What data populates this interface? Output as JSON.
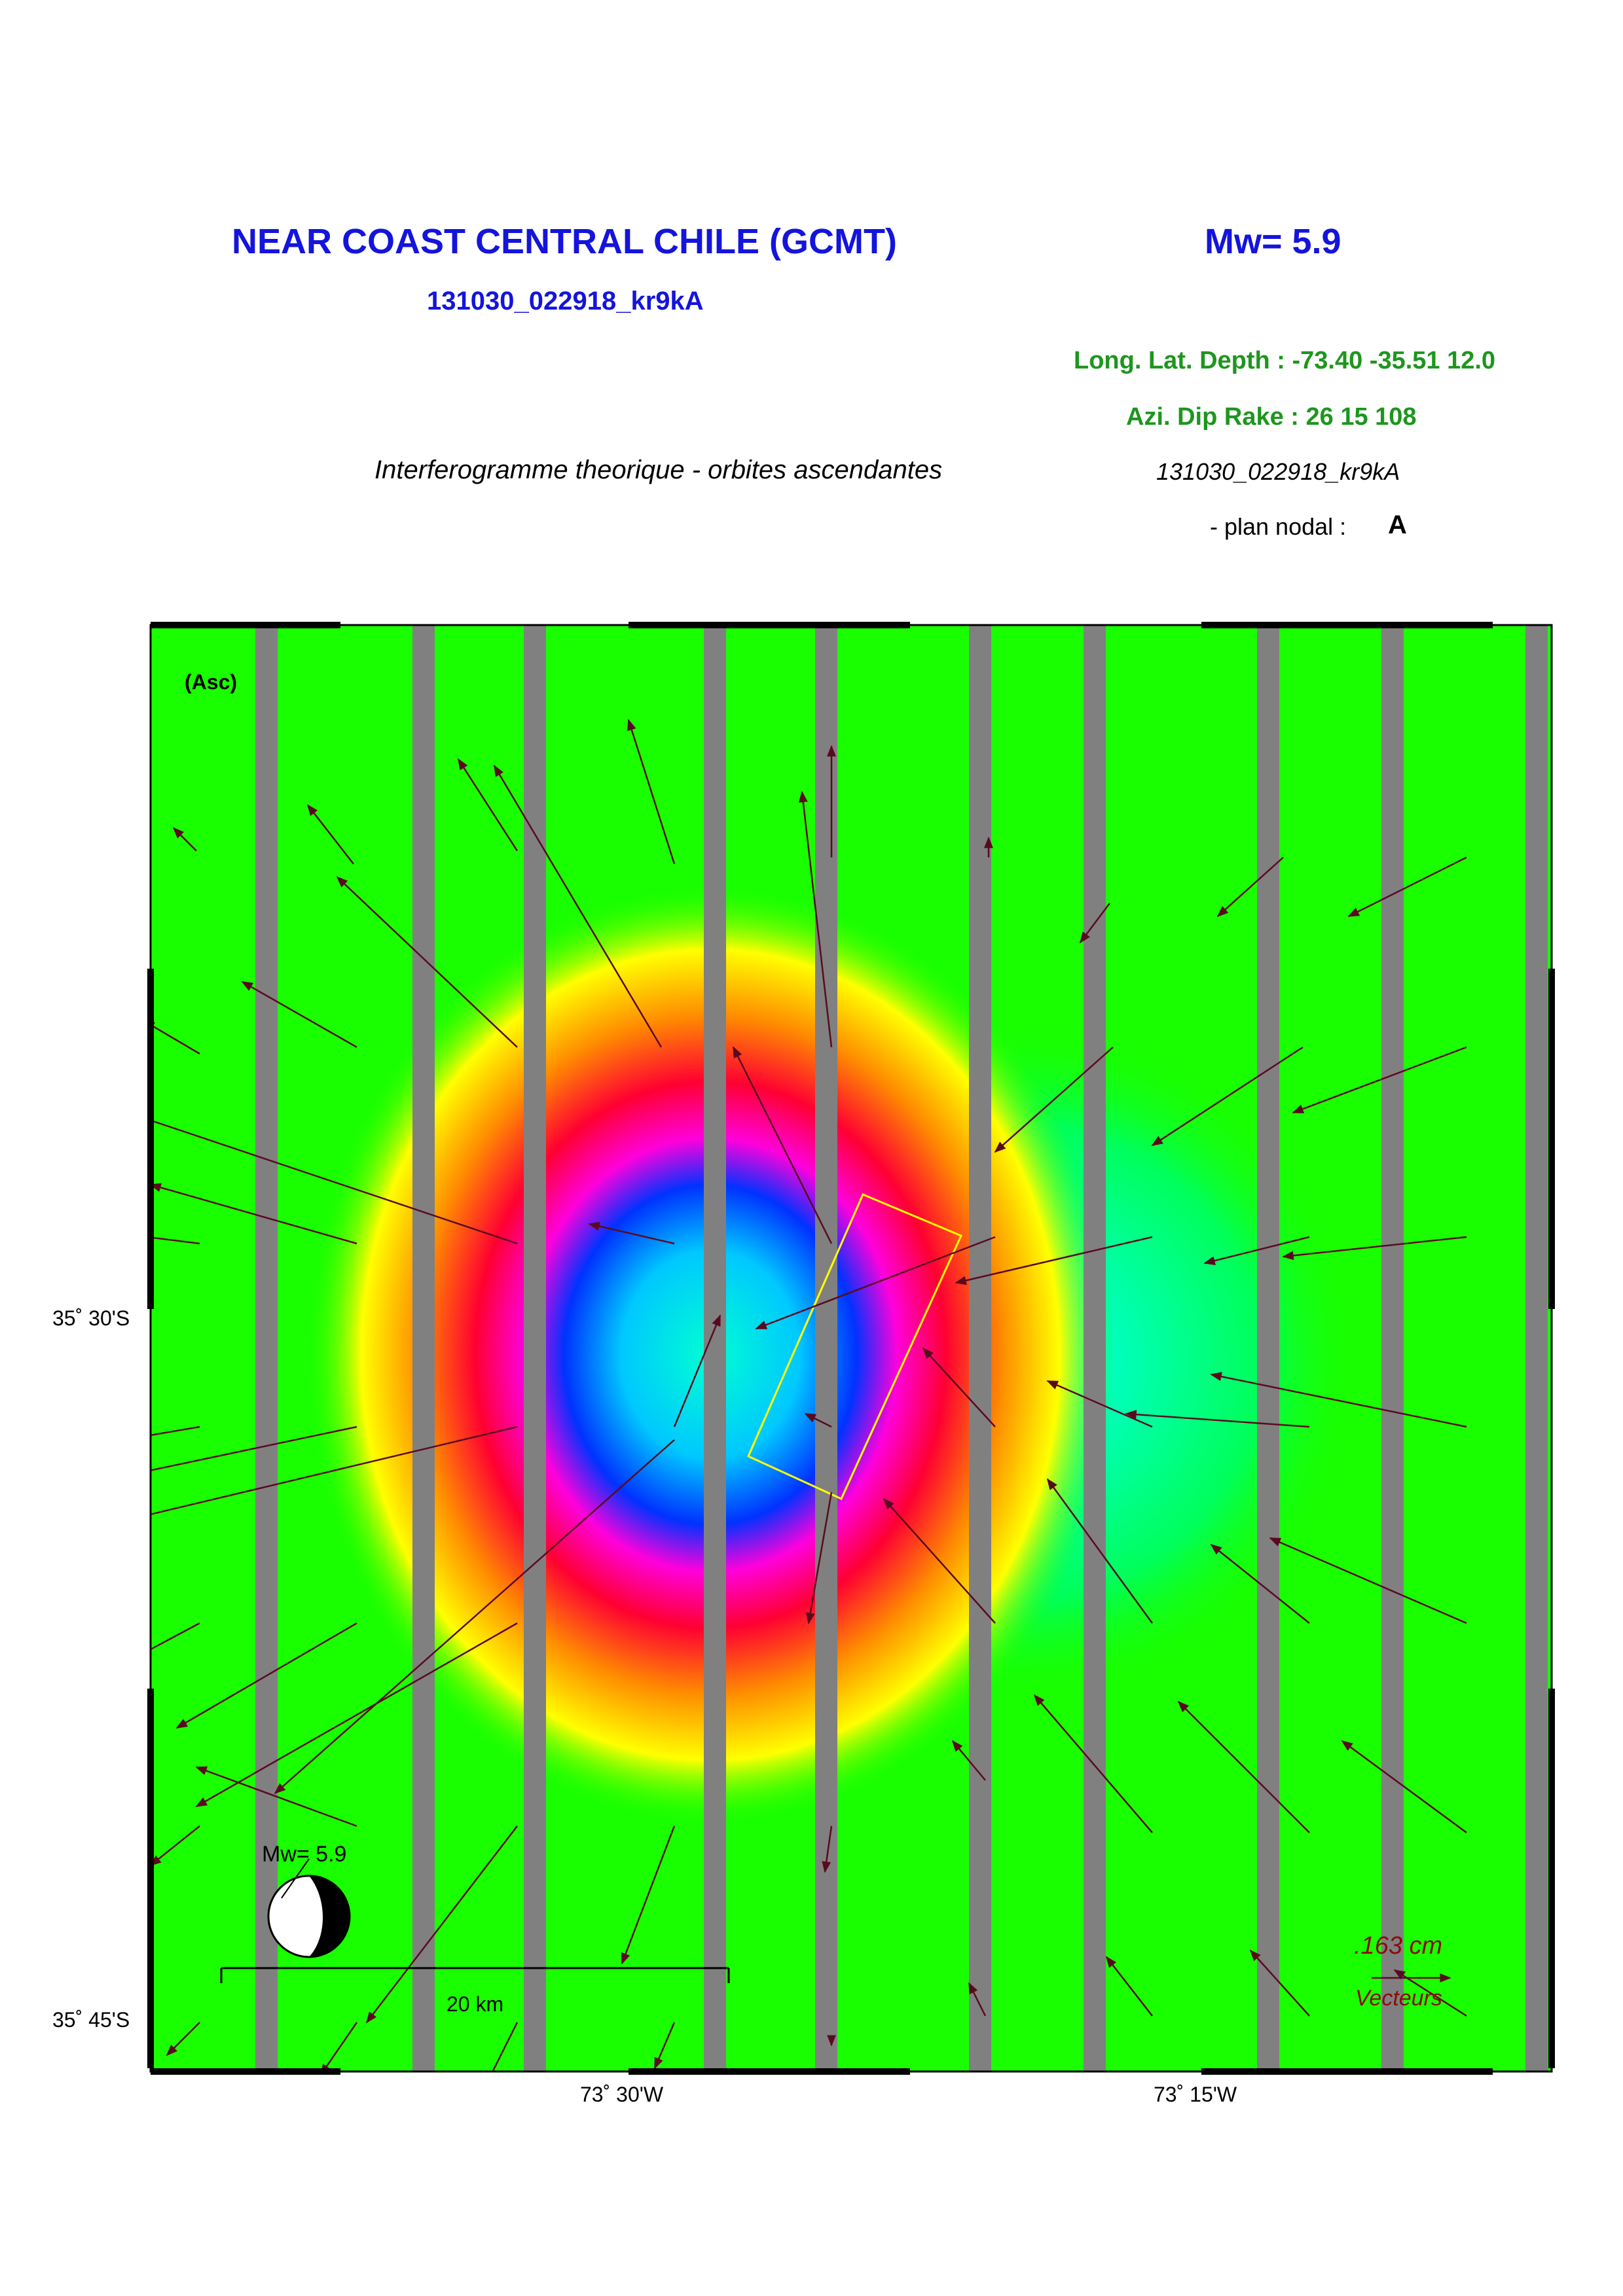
{
  "header": {
    "title": "NEAR COAST CENTRAL CHILE (GCMT)",
    "magnitude": "Mw= 5.9",
    "event_code": "131030_022918_kr9kA",
    "location_params": "Long. Lat. Depth : -73.40 -35.51 12.0",
    "mechanism_params": "Azi.  Dip   Rake :  26 15 108",
    "map_subtitle": "Interferogramme theorique - orbites ascendantes",
    "event_code_italic": "131030_022918_kr9kA",
    "nodal_plane_label": "- plan nodal :",
    "nodal_plane_value": "A"
  },
  "map": {
    "orbit_label": "(Asc)",
    "lat_labels": [
      "35˚ 30'S",
      "35˚ 45'S"
    ],
    "lon_labels": [
      "73˚ 30'W",
      "73˚ 15'W"
    ],
    "scale_bar_label": "20 km",
    "vector_scale_value": ".163  cm",
    "vector_scale_label": "Vecteurs",
    "beachball_label": "Mw= 5.9",
    "colors": {
      "background": "#19ff00",
      "stripe": "#808080",
      "fault_outline": "#ffff00",
      "vector": "#5a0a1e",
      "scale_text": "#8c0a0a"
    }
  }
}
